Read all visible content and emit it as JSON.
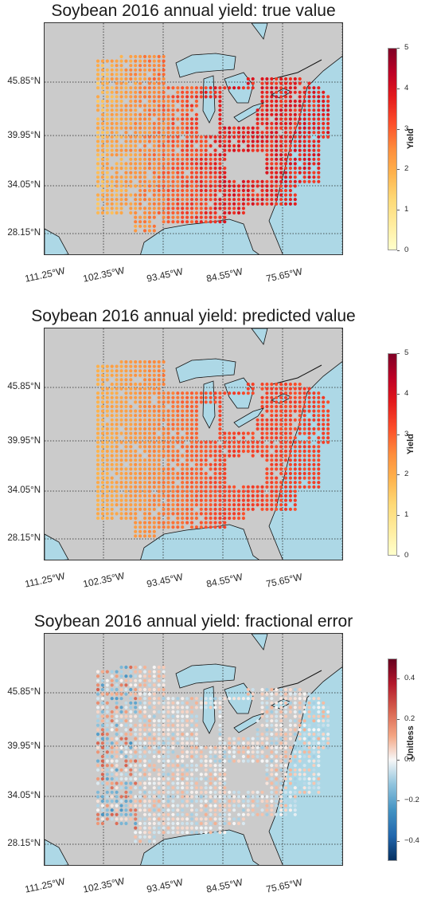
{
  "panels": [
    {
      "title": "Soybean 2016 annual yield: true value",
      "kind": "true",
      "colorbar": {
        "label": "Yield",
        "ticks": [
          "0",
          "1",
          "2",
          "3",
          "4",
          "5"
        ],
        "min": 0,
        "max": 5,
        "cmap": "YlOrRd"
      }
    },
    {
      "title": "Soybean 2016 annual yield: predicted value",
      "kind": "pred",
      "colorbar": {
        "label": "Yield",
        "ticks": [
          "0",
          "1",
          "2",
          "3",
          "4",
          "5"
        ],
        "min": 0,
        "max": 5,
        "cmap": "YlOrRd"
      }
    },
    {
      "title": "Soybean 2016 annual yield: fractional error",
      "kind": "err",
      "colorbar": {
        "label": "Unitless",
        "ticks": [
          "−0.4",
          "−0.2",
          "0.0",
          "0.2",
          "0.4"
        ],
        "min": -0.5,
        "max": 0.5,
        "cmap": "RdBu_r"
      }
    }
  ],
  "lat_labels": [
    "45.85°N",
    "39.95°N",
    "34.05°N",
    "28.15°N"
  ],
  "lon_labels": [
    "111.25°W",
    "102.35°W",
    "93.45°W",
    "84.55°W",
    "75.65°W"
  ],
  "colors": {
    "land": "#cbcbcb",
    "water": "#add8e6",
    "grid": "#222222"
  },
  "chart_data": [
    {
      "type": "scatter",
      "title": "Soybean 2016 annual yield: true value",
      "colorbar_label": "Yield",
      "clim": [
        0,
        5
      ],
      "lat_ticks": [
        45.85,
        39.95,
        34.05,
        28.15
      ],
      "lon_ticks": [
        -111.25,
        -102.35,
        -93.45,
        -84.55,
        -75.65
      ],
      "grid": true
    },
    {
      "type": "scatter",
      "title": "Soybean 2016 annual yield: predicted value",
      "colorbar_label": "Yield",
      "clim": [
        0,
        5
      ],
      "lat_ticks": [
        45.85,
        39.95,
        34.05,
        28.15
      ],
      "lon_ticks": [
        -111.25,
        -102.35,
        -93.45,
        -84.55,
        -75.65
      ],
      "grid": true
    },
    {
      "type": "scatter",
      "title": "Soybean 2016 annual yield: fractional error",
      "colorbar_label": "Unitless",
      "clim": [
        -0.5,
        0.5
      ],
      "lat_ticks": [
        45.85,
        39.95,
        34.05,
        28.15
      ],
      "lon_ticks": [
        -111.25,
        -102.35,
        -93.45,
        -84.55,
        -75.65
      ],
      "grid": true
    }
  ]
}
